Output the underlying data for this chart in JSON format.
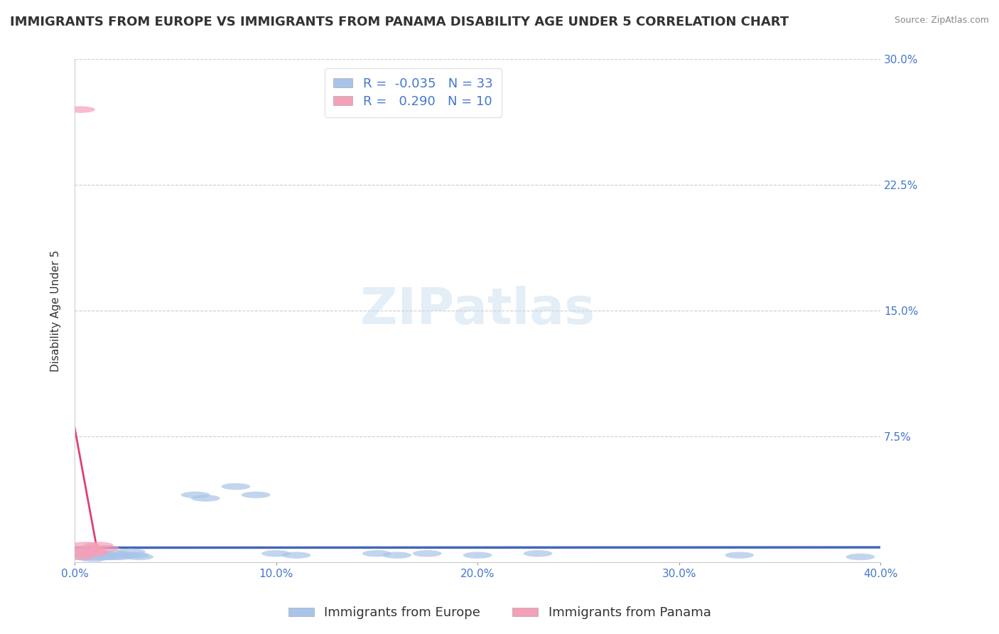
{
  "title": "IMMIGRANTS FROM EUROPE VS IMMIGRANTS FROM PANAMA DISABILITY AGE UNDER 5 CORRELATION CHART",
  "source": "Source: ZipAtlas.com",
  "ylabel": "Disability Age Under 5",
  "xlim": [
    0.0,
    0.4
  ],
  "ylim": [
    0.0,
    0.3
  ],
  "yticks": [
    0.0,
    0.075,
    0.15,
    0.225,
    0.3
  ],
  "ytick_labels": [
    "",
    "7.5%",
    "15.0%",
    "22.5%",
    "30.0%"
  ],
  "xticks": [
    0.0,
    0.1,
    0.2,
    0.3,
    0.4
  ],
  "xtick_labels": [
    "0.0%",
    "10.0%",
    "20.0%",
    "30.0%",
    "40.0%"
  ],
  "europe_color": "#a8c4e8",
  "europe_line_color": "#4466bb",
  "panama_color": "#f4a0b8",
  "panama_line_color": "#e04070",
  "europe_R": -0.035,
  "europe_N": 33,
  "panama_R": 0.29,
  "panama_N": 10,
  "europe_x": [
    0.002,
    0.004,
    0.005,
    0.006,
    0.007,
    0.008,
    0.009,
    0.01,
    0.011,
    0.012,
    0.013,
    0.015,
    0.016,
    0.018,
    0.02,
    0.022,
    0.025,
    0.028,
    0.03,
    0.032,
    0.06,
    0.065,
    0.08,
    0.09,
    0.1,
    0.11,
    0.15,
    0.16,
    0.175,
    0.2,
    0.23,
    0.33,
    0.39
  ],
  "europe_y": [
    0.005,
    0.003,
    0.004,
    0.006,
    0.003,
    0.004,
    0.002,
    0.005,
    0.003,
    0.004,
    0.005,
    0.003,
    0.004,
    0.003,
    0.005,
    0.003,
    0.004,
    0.006,
    0.004,
    0.003,
    0.04,
    0.038,
    0.045,
    0.04,
    0.005,
    0.004,
    0.005,
    0.004,
    0.005,
    0.004,
    0.005,
    0.004,
    0.003
  ],
  "panama_x": [
    0.002,
    0.003,
    0.005,
    0.006,
    0.007,
    0.009,
    0.01,
    0.012,
    0.015,
    0.003
  ],
  "panama_y": [
    0.005,
    0.003,
    0.01,
    0.007,
    0.008,
    0.005,
    0.006,
    0.01,
    0.008,
    0.27
  ],
  "background_color": "#ffffff",
  "grid_color": "#cccccc",
  "title_fontsize": 13,
  "axis_label_fontsize": 11,
  "tick_fontsize": 11,
  "legend_fontsize": 13
}
